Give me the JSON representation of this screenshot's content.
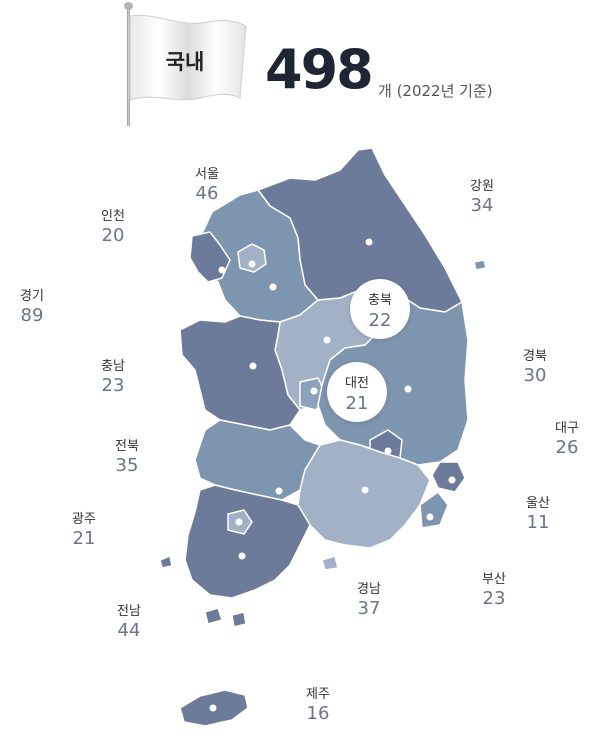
{
  "header": {
    "flag_label": "국내",
    "total": "498",
    "total_sub": "개 (2022년 기준)"
  },
  "colors": {
    "dark_region": "#6c7b99",
    "mid_region": "#7e95b0",
    "light_region": "#a2b2c6",
    "label_name": "#333333",
    "label_count": "#6b7488"
  },
  "regions": [
    {
      "name": "서울",
      "count": "46"
    },
    {
      "name": "인천",
      "count": "20"
    },
    {
      "name": "경기",
      "count": "89"
    },
    {
      "name": "강원",
      "count": "34"
    },
    {
      "name": "충북",
      "count": "22"
    },
    {
      "name": "대전",
      "count": "21"
    },
    {
      "name": "충남",
      "count": "23"
    },
    {
      "name": "경북",
      "count": "30"
    },
    {
      "name": "대구",
      "count": "26"
    },
    {
      "name": "전북",
      "count": "35"
    },
    {
      "name": "울산",
      "count": "11"
    },
    {
      "name": "광주",
      "count": "21"
    },
    {
      "name": "부산",
      "count": "23"
    },
    {
      "name": "경남",
      "count": "37"
    },
    {
      "name": "전남",
      "count": "44"
    },
    {
      "name": "제주",
      "count": "16"
    }
  ]
}
